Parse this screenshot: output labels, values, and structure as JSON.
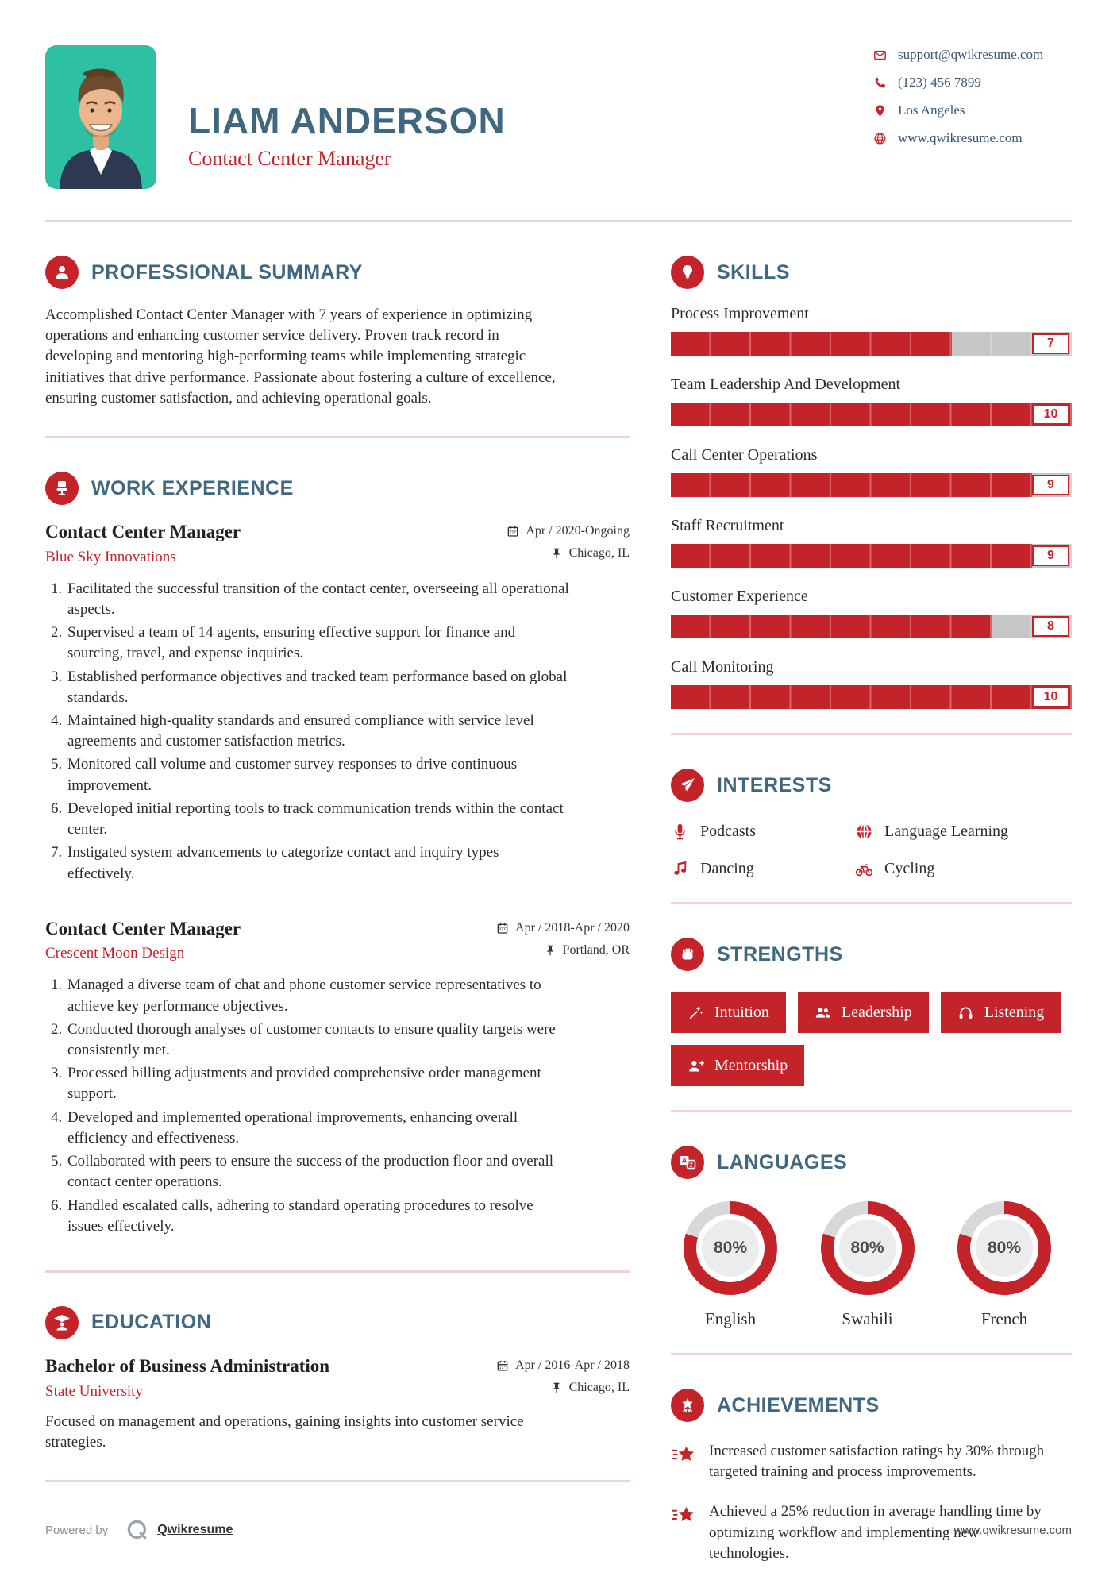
{
  "colors": {
    "accent_red": "#c5232a",
    "heading_blue": "#3f6880",
    "photo_teal": "#2ec0a2",
    "divider_pink": "#f3d2d7",
    "bar_gray": "#c6c6c6",
    "donut_gray": "#d8d8d8"
  },
  "header": {
    "name": "LIAM ANDERSON",
    "title": "Contact Center Manager",
    "contacts": [
      {
        "icon": "envelope",
        "value": "support@qwikresume.com",
        "interactable": true
      },
      {
        "icon": "phone",
        "value": "(123) 456 7899",
        "interactable": false
      },
      {
        "icon": "map-pin",
        "value": "Los Angeles",
        "interactable": false
      },
      {
        "icon": "globe",
        "value": "www.qwikresume.com",
        "interactable": true
      }
    ]
  },
  "summary": {
    "title": "PROFESSIONAL SUMMARY",
    "text": "Accomplished Contact Center Manager with 7 years of experience in optimizing operations and enhancing customer service delivery. Proven track record in developing and mentoring high-performing teams while implementing strategic initiatives that drive performance. Passionate about fostering a culture of excellence, ensuring customer satisfaction, and achieving operational goals."
  },
  "experience": {
    "title": "WORK EXPERIENCE",
    "jobs": [
      {
        "role": "Contact Center Manager",
        "company": "Blue Sky Innovations",
        "dates": "Apr / 2020-Ongoing",
        "location": "Chicago, IL",
        "bullets": [
          "Facilitated the successful transition of the contact center, overseeing all operational aspects.",
          "Supervised a team of 14 agents, ensuring effective support for finance and sourcing, travel, and expense inquiries.",
          "Established performance objectives and tracked team performance based on global standards.",
          "Maintained high-quality standards and ensured compliance with service level agreements and customer satisfaction metrics.",
          "Monitored call volume and customer survey responses to drive continuous improvement.",
          "Developed initial reporting tools to track communication trends within the contact center.",
          "Instigated system advancements to categorize contact and inquiry types effectively."
        ]
      },
      {
        "role": "Contact Center Manager",
        "company": "Crescent Moon Design",
        "dates": "Apr / 2018-Apr / 2020",
        "location": "Portland, OR",
        "bullets": [
          "Managed a diverse team of chat and phone customer service representatives to achieve key performance objectives.",
          "Conducted thorough analyses of customer contacts to ensure quality targets were consistently met.",
          "Processed billing adjustments and provided comprehensive order management support.",
          "Developed and implemented operational improvements, enhancing overall efficiency and effectiveness.",
          "Collaborated with peers to ensure the success of the production floor and overall contact center operations.",
          "Handled escalated calls, adhering to standard operating procedures to resolve issues effectively."
        ]
      }
    ]
  },
  "education": {
    "title": "EDUCATION",
    "degree": "Bachelor of Business Administration",
    "school": "State University",
    "dates": "Apr / 2016-Apr / 2018",
    "location": "Chicago, IL",
    "description": "Focused on management and operations, gaining insights into customer service strategies."
  },
  "skills": {
    "title": "SKILLS",
    "max": 10,
    "items": [
      {
        "name": "Process Improvement",
        "level": 7
      },
      {
        "name": "Team Leadership And Development",
        "level": 10
      },
      {
        "name": "Call Center Operations",
        "level": 9
      },
      {
        "name": "Staff Recruitment",
        "level": 9
      },
      {
        "name": "Customer Experience",
        "level": 8
      },
      {
        "name": "Call Monitoring",
        "level": 10
      }
    ]
  },
  "interests": {
    "title": "INTERESTS",
    "items": [
      {
        "icon": "microphone",
        "label": "Podcasts"
      },
      {
        "icon": "globe-language",
        "label": "Language Learning"
      },
      {
        "icon": "music-notes",
        "label": "Dancing"
      },
      {
        "icon": "bicycle",
        "label": "Cycling"
      }
    ]
  },
  "strengths": {
    "title": "STRENGTHS",
    "items": [
      {
        "icon": "magic-wand",
        "label": "Intuition"
      },
      {
        "icon": "users-group",
        "label": "Leadership"
      },
      {
        "icon": "headphones",
        "label": "Listening"
      },
      {
        "icon": "user-plus",
        "label": "Mentorship"
      }
    ]
  },
  "languages": {
    "title": "LANGUAGES",
    "items": [
      {
        "name": "English",
        "percent": 80
      },
      {
        "name": "Swahili",
        "percent": 80
      },
      {
        "name": "French",
        "percent": 80
      }
    ]
  },
  "achievements": {
    "title": "ACHIEVEMENTS",
    "items": [
      "Increased customer satisfaction ratings by 30% through targeted training and process improvements.",
      "Achieved a 25% reduction in average handling time by optimizing workflow and implementing new technologies."
    ]
  },
  "footer": {
    "powered_by": "Powered by",
    "brand": "Qwikresume",
    "site": "www.qwikresume.com"
  }
}
